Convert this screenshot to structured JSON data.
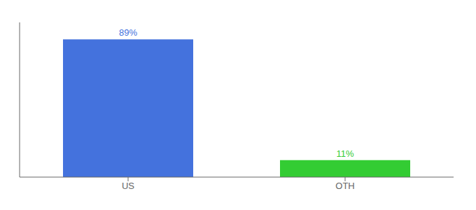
{
  "chart_data": {
    "type": "bar",
    "categories": [
      "US",
      "OTH"
    ],
    "values": [
      89,
      11
    ],
    "value_labels": [
      "89%",
      "11%"
    ],
    "colors": [
      "#4472dd",
      "#33cc33"
    ],
    "ylim": [
      0,
      100
    ],
    "data_labels": true,
    "tick_labels": "x",
    "grid": false
  }
}
